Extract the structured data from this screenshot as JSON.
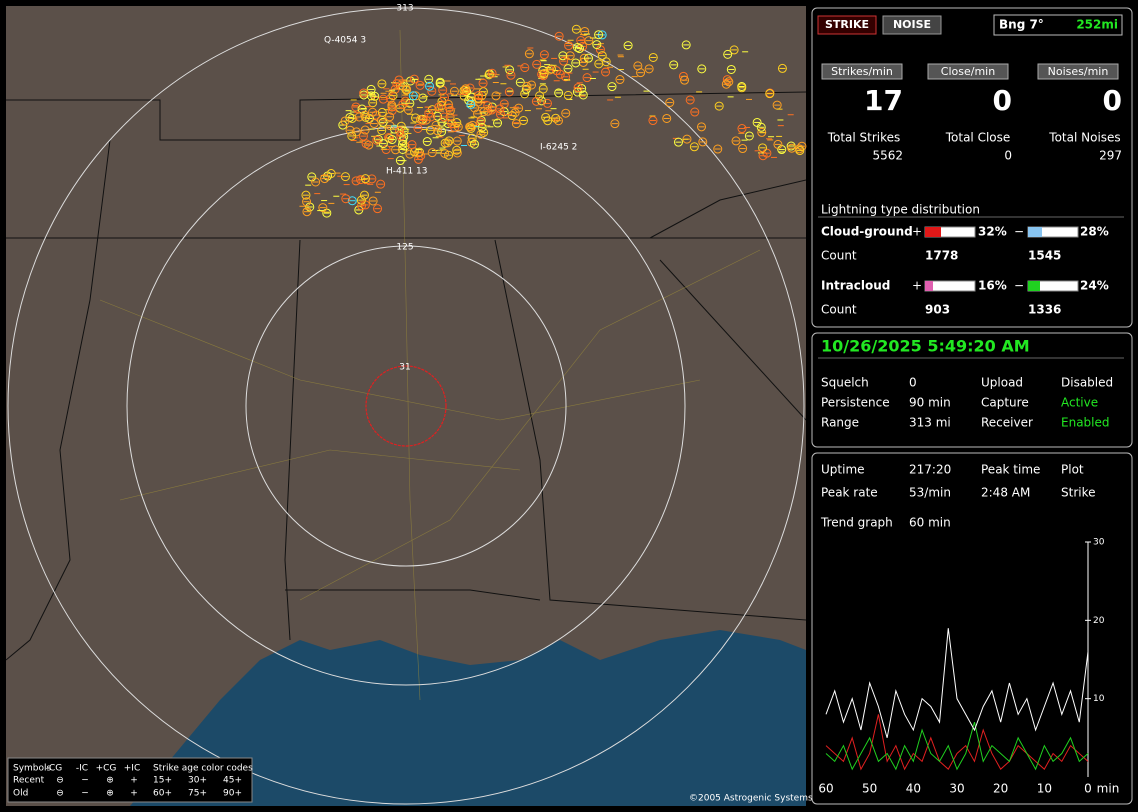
{
  "map": {
    "range_labels": [
      "313",
      "125",
      "31"
    ],
    "storm_labels": [
      "Q-4054 3",
      "H-411 13",
      "I-6245 2"
    ],
    "legend": {
      "symbols_title": "Symbols",
      "types": [
        "-CG",
        "-IC",
        "+CG",
        "+IC"
      ],
      "age_title": "Strike age color codes",
      "rows": [
        {
          "label": "Recent",
          "symbols": [
            "⊖",
            "−",
            "⊕",
            "+"
          ],
          "ages": [
            "15+",
            "30+",
            "45+"
          ]
        },
        {
          "label": "Old",
          "symbols": [
            "⊖",
            "−",
            "⊕",
            "+"
          ],
          "ages": [
            "60+",
            "75+",
            "90+"
          ]
        }
      ]
    },
    "copyright": "©2005 Astrogenic Systems"
  },
  "header": {
    "strike_button": "STRIKE",
    "noise_button": "NOISE",
    "bearing": "Bng 7°",
    "distance": "252mi"
  },
  "rates": [
    {
      "label": "Strikes/min",
      "value": "17",
      "total_label": "Total Strikes",
      "total": "5562"
    },
    {
      "label": "Close/min",
      "value": "0",
      "total_label": "Total Close",
      "total": "0"
    },
    {
      "label": "Noises/min",
      "value": "0",
      "total_label": "Total Noises",
      "total": "297"
    }
  ],
  "distribution": {
    "title": "Lightning type distribution",
    "rows": [
      {
        "label": "Cloud-ground",
        "plus": "+",
        "plus_pct": {
          "value": 32,
          "label": "32%"
        },
        "minus": "−",
        "minus_pct": {
          "value": 28,
          "label": "28%"
        },
        "count_label": "Count",
        "plus_count": "1778",
        "minus_count": "1545"
      },
      {
        "label": "Intracloud",
        "plus": "+",
        "plus_pct": {
          "value": 16,
          "label": "16%"
        },
        "minus": "−",
        "minus_pct": {
          "value": 24,
          "label": "24%"
        },
        "count_label": "Count",
        "plus_count": "903",
        "minus_count": "1336"
      }
    ]
  },
  "status": {
    "datetime": "10/26/2025 5:49:20 AM",
    "rows": [
      [
        "Squelch",
        "0",
        "Upload",
        "Disabled"
      ],
      [
        "Persistence",
        "90 min",
        "Capture",
        "Active"
      ],
      [
        "Range",
        "313 mi",
        "Receiver",
        "Enabled"
      ]
    ]
  },
  "stats": {
    "rows": [
      [
        "Uptime",
        "217:20",
        "Peak time",
        "Plot"
      ],
      [
        "Peak rate",
        "53/min",
        "2:48 AM",
        "Strike"
      ]
    ],
    "trend_label": "Trend graph",
    "trend_value": "60 min"
  },
  "chart_data": {
    "type": "line",
    "x_unit": "min",
    "xlim": [
      60,
      0
    ],
    "xticks": [
      60,
      50,
      40,
      30,
      20,
      10,
      0
    ],
    "ylim": [
      0,
      30
    ],
    "yticks": [
      10,
      20,
      30
    ],
    "x": [
      60,
      58,
      56,
      54,
      52,
      50,
      48,
      46,
      44,
      42,
      40,
      38,
      36,
      34,
      32,
      30,
      28,
      26,
      24,
      22,
      20,
      18,
      16,
      14,
      12,
      10,
      8,
      6,
      4,
      2,
      0
    ],
    "series": [
      {
        "color": "#ffffff",
        "values": [
          8,
          11,
          7,
          10,
          6,
          12,
          9,
          5,
          11,
          8,
          6,
          10,
          9,
          7,
          19,
          10,
          8,
          6,
          9,
          11,
          7,
          12,
          8,
          10,
          6,
          9,
          12,
          8,
          11,
          7,
          16
        ]
      },
      {
        "color": "#20d020",
        "values": [
          3,
          2,
          4,
          1,
          3,
          5,
          2,
          3,
          1,
          4,
          2,
          6,
          3,
          2,
          4,
          1,
          3,
          7,
          2,
          4,
          3,
          2,
          5,
          3,
          1,
          4,
          2,
          3,
          5,
          2,
          3
        ]
      },
      {
        "color": "#e02020",
        "values": [
          4,
          3,
          2,
          5,
          1,
          3,
          8,
          2,
          4,
          1,
          3,
          2,
          5,
          2,
          1,
          3,
          4,
          2,
          6,
          3,
          1,
          2,
          4,
          3,
          2,
          1,
          3,
          2,
          4,
          3,
          2
        ]
      }
    ]
  }
}
